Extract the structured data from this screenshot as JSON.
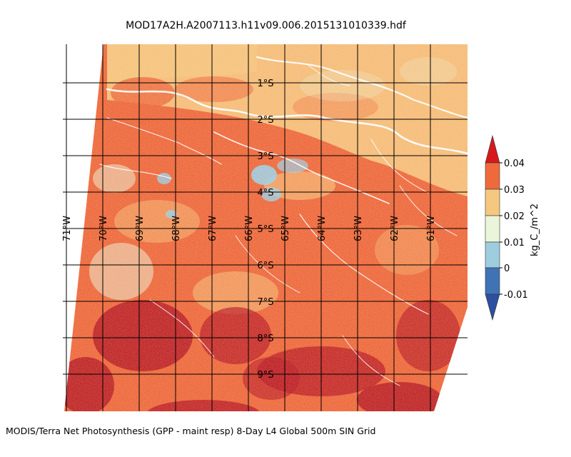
{
  "title": "MOD17A2H.A2007113.h11v09.006.2015131010339.hdf",
  "caption": "MODIS/Terra Net Photosynthesis (GPP - maint resp) 8-Day L4 Global 500m SIN Grid",
  "latitude_labels": [
    "1°S",
    "2°S",
    "3°S",
    "4°S",
    "5°S",
    "6°S",
    "7°S",
    "8°S",
    "9°S"
  ],
  "longitude_labels": [
    "71°W",
    "70°W",
    "69°W",
    "68°W",
    "67°W",
    "66°W",
    "65°W",
    "64°W",
    "63°W",
    "62°W",
    "61°W"
  ],
  "colorbar": {
    "unit_label": "kg_C_/m^2",
    "tick_labels": [
      "0.04",
      "0.03",
      "0.02",
      "0.01",
      "0",
      "-0.01"
    ],
    "colors": [
      "#d7191c",
      "#ee6a3d",
      "#f6c77f",
      "#ebf5d9",
      "#9fcde0",
      "#3f73b5",
      "#2c4fa0"
    ]
  },
  "map_colors": {
    "dominant": "#ee6a3d",
    "high": "#b91d26",
    "mid": "#f6c77f",
    "low": "#ebf5d9",
    "water": "#9fcde0",
    "rivers": "#ffffff",
    "grid": "#000000"
  }
}
